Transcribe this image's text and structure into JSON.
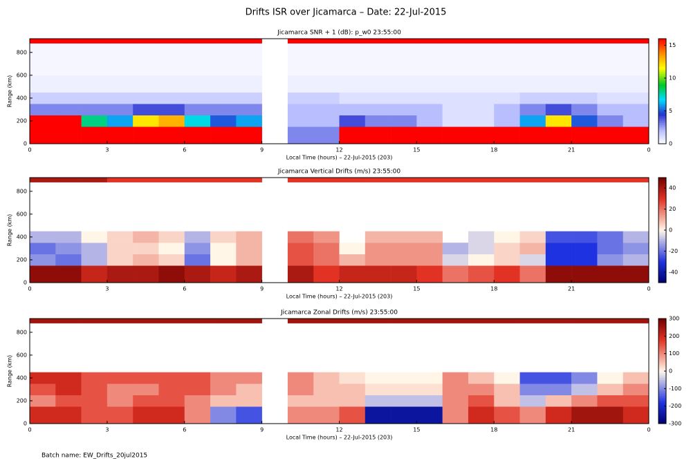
{
  "title": "Drifts ISR over Jicamarca – Date: 22-Jul-2015",
  "footer": "Batch name: EW_Drifts_20jul2015",
  "chart_data": [
    {
      "type": "heatmap",
      "title": "Jicamarca SNR + 1 (dB): p_w0 23:55:00",
      "colormap": "rainbow",
      "xlabel": "Local Time (hours) – 22-Jul-2015 (203)",
      "ylabel": "Range (km)",
      "xlim": [
        0,
        24
      ],
      "xticks": [
        0,
        3,
        6,
        9,
        12,
        15,
        18,
        21,
        {
          "value": 24,
          "label": "0"
        }
      ],
      "ylim": [
        0,
        920
      ],
      "yticks": [
        0,
        200,
        400,
        600,
        800
      ],
      "x_edges": [
        0,
        1,
        2,
        3,
        4,
        5,
        6,
        7,
        8,
        9,
        10,
        11,
        12,
        13,
        14,
        15,
        16,
        17,
        18,
        19,
        20,
        21,
        22,
        23,
        24
      ],
      "y_edges": [
        0,
        150,
        250,
        350,
        450,
        600,
        880,
        920
      ],
      "zlim": [
        0,
        16
      ],
      "zticks": [
        0,
        5,
        10,
        15
      ],
      "z": [
        [
          16,
          16,
          16,
          16,
          16,
          16,
          16,
          16,
          16,
          null,
          3,
          3,
          16,
          16,
          16,
          16,
          16,
          16,
          16,
          16,
          16,
          16,
          16,
          16
        ],
        [
          16,
          16,
          8,
          6,
          12,
          13,
          7,
          5,
          6,
          null,
          2,
          2,
          4,
          3,
          3,
          2,
          1,
          1,
          2,
          6,
          12,
          5,
          3,
          2
        ],
        [
          3,
          3,
          3,
          3,
          4,
          4,
          3,
          3,
          3,
          null,
          2,
          2,
          2,
          2,
          2,
          2,
          1,
          1,
          2,
          3,
          4,
          3,
          2,
          2
        ],
        [
          1.5,
          1.5,
          1.5,
          1.5,
          1.5,
          1.5,
          1.5,
          1.5,
          1.5,
          null,
          1.5,
          1.5,
          1,
          1,
          1,
          1,
          1,
          1,
          1,
          1.5,
          1.5,
          1.5,
          1,
          1
        ],
        [
          0.5,
          0.5,
          0.5,
          0.5,
          0.5,
          0.5,
          0.5,
          0.5,
          0.5,
          null,
          0.5,
          0.5,
          0.5,
          0.5,
          0.5,
          0.5,
          0.5,
          0.5,
          0.5,
          0.5,
          0.5,
          0.5,
          0.5,
          0.5
        ],
        [
          0.3,
          0.3,
          0.3,
          0.3,
          0.3,
          0.3,
          0.3,
          0.3,
          0.3,
          null,
          0.3,
          0.3,
          0.3,
          0.3,
          0.3,
          0.3,
          0.3,
          0.3,
          0.3,
          0.3,
          0.3,
          0.3,
          0.3,
          0.3
        ],
        [
          16,
          16,
          16,
          16,
          16,
          16,
          16,
          16,
          16,
          null,
          16,
          16,
          16,
          16,
          16,
          16,
          16,
          16,
          16,
          16,
          16,
          16,
          16,
          16
        ]
      ]
    },
    {
      "type": "heatmap",
      "title": "Jicamarca Vertical Drifts (m/s) 23:55:00",
      "colormap": "diverging",
      "xlabel": "Local Time (hours) – 22-Jul-2015 (203)",
      "ylabel": "Range (km)",
      "xlim": [
        0,
        24
      ],
      "xticks": [
        0,
        3,
        6,
        9,
        12,
        15,
        18,
        21,
        {
          "value": 24,
          "label": "0"
        }
      ],
      "ylim": [
        0,
        920
      ],
      "yticks": [
        0,
        200,
        400,
        600,
        800
      ],
      "x_edges": [
        0,
        1,
        2,
        3,
        4,
        5,
        6,
        7,
        8,
        9,
        10,
        11,
        12,
        13,
        14,
        15,
        16,
        17,
        18,
        19,
        20,
        21,
        22,
        23,
        24
      ],
      "y_edges": [
        0,
        150,
        250,
        350,
        450,
        600,
        880,
        920
      ],
      "zlim": [
        -50,
        50
      ],
      "zticks": [
        -40,
        -20,
        0,
        20,
        40
      ],
      "z": [
        [
          45,
          45,
          35,
          40,
          40,
          45,
          40,
          35,
          40,
          null,
          40,
          30,
          35,
          35,
          35,
          30,
          20,
          25,
          30,
          20,
          45,
          45,
          45,
          45
        ],
        [
          -15,
          -20,
          -10,
          5,
          10,
          5,
          -20,
          0,
          10,
          null,
          25,
          20,
          10,
          15,
          15,
          15,
          -5,
          0,
          5,
          -5,
          -30,
          -30,
          -15,
          -10
        ],
        [
          -20,
          -15,
          -10,
          5,
          5,
          0,
          -15,
          0,
          10,
          null,
          25,
          20,
          0,
          15,
          15,
          15,
          -10,
          -5,
          5,
          10,
          -30,
          -30,
          -20,
          -15
        ],
        [
          -10,
          -10,
          0,
          5,
          10,
          5,
          -10,
          5,
          10,
          null,
          20,
          15,
          null,
          10,
          10,
          10,
          null,
          -5,
          0,
          5,
          -25,
          -25,
          -20,
          -10
        ],
        [
          null,
          null,
          null,
          null,
          null,
          null,
          null,
          null,
          null,
          null,
          null,
          null,
          null,
          null,
          null,
          null,
          null,
          null,
          null,
          null,
          null,
          null,
          null,
          null
        ],
        [
          null,
          null,
          null,
          null,
          null,
          null,
          null,
          null,
          null,
          null,
          null,
          null,
          null,
          null,
          null,
          null,
          null,
          null,
          null,
          null,
          null,
          null,
          null,
          null
        ],
        [
          40,
          40,
          40,
          30,
          30,
          30,
          30,
          30,
          30,
          null,
          30,
          30,
          30,
          30,
          30,
          30,
          30,
          30,
          30,
          30,
          30,
          30,
          30,
          30
        ]
      ]
    },
    {
      "type": "heatmap",
      "title": "Jicamarca Zonal Drifts (m/s) 23:55:00",
      "colormap": "diverging",
      "xlabel": "Local Time (hours) – 22-Jul-2015 (203)",
      "ylabel": "Range (km)",
      "xlim": [
        0,
        24
      ],
      "xticks": [
        0,
        3,
        6,
        9,
        12,
        15,
        18,
        21,
        {
          "value": 24,
          "label": "0"
        }
      ],
      "ylim": [
        0,
        920
      ],
      "yticks": [
        0,
        200,
        400,
        600,
        800
      ],
      "x_edges": [
        0,
        1,
        2,
        3,
        4,
        5,
        6,
        7,
        8,
        9,
        10,
        11,
        12,
        13,
        14,
        15,
        16,
        17,
        18,
        19,
        20,
        21,
        22,
        23,
        24
      ],
      "y_edges": [
        0,
        150,
        250,
        350,
        450,
        600,
        880,
        920
      ],
      "zlim": [
        -300,
        300
      ],
      "zticks": [
        -300,
        -200,
        -100,
        0,
        100,
        200,
        300
      ],
      "z": [
        [
          200,
          200,
          150,
          150,
          200,
          200,
          100,
          -100,
          -150,
          null,
          100,
          100,
          150,
          -250,
          -250,
          -250,
          100,
          200,
          150,
          100,
          200,
          250,
          250,
          200
        ],
        [
          100,
          150,
          150,
          100,
          150,
          150,
          100,
          50,
          50,
          null,
          50,
          50,
          50,
          -50,
          -50,
          -50,
          100,
          150,
          50,
          -50,
          50,
          100,
          150,
          150
        ],
        [
          150,
          200,
          150,
          100,
          100,
          150,
          150,
          100,
          50,
          null,
          100,
          50,
          50,
          20,
          20,
          20,
          100,
          100,
          50,
          -100,
          -100,
          -50,
          50,
          100
        ],
        [
          200,
          200,
          150,
          150,
          150,
          150,
          150,
          100,
          100,
          null,
          100,
          50,
          20,
          0,
          0,
          0,
          100,
          50,
          0,
          -150,
          -150,
          -100,
          0,
          50
        ],
        [
          null,
          null,
          null,
          null,
          null,
          null,
          null,
          null,
          null,
          null,
          null,
          null,
          null,
          null,
          null,
          null,
          null,
          null,
          null,
          null,
          null,
          null,
          null,
          null
        ],
        [
          null,
          null,
          null,
          null,
          null,
          null,
          null,
          null,
          null,
          null,
          null,
          null,
          null,
          null,
          null,
          null,
          null,
          null,
          null,
          null,
          null,
          null,
          null,
          null
        ],
        [
          250,
          250,
          250,
          250,
          250,
          250,
          250,
          250,
          250,
          null,
          250,
          250,
          250,
          250,
          250,
          250,
          250,
          250,
          250,
          250,
          250,
          250,
          250,
          250
        ]
      ]
    }
  ]
}
